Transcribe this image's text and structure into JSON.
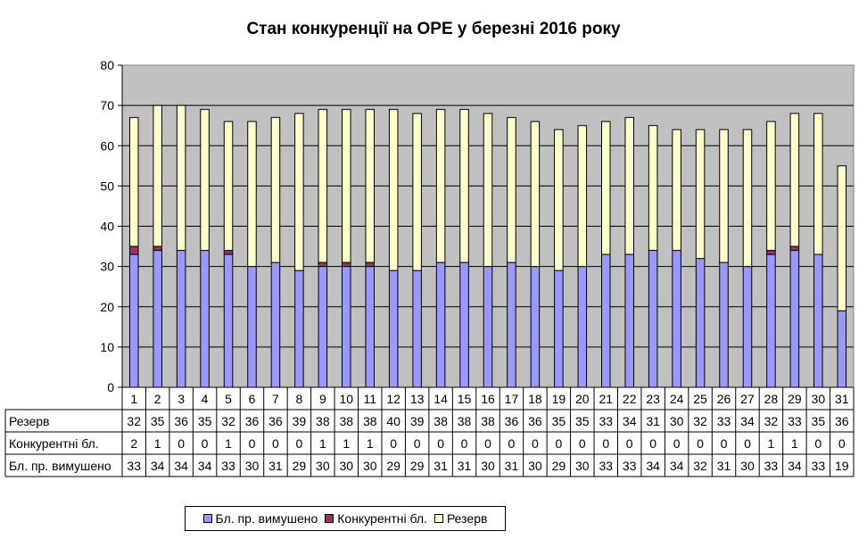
{
  "chart_data": {
    "type": "bar",
    "stacked": true,
    "title": "Стан конкуренції на ОРЕ  у березні 2016 року",
    "ylim": [
      0,
      80
    ],
    "yticks": [
      "0",
      "10",
      "20",
      "30",
      "40",
      "50",
      "60",
      "70",
      "80"
    ],
    "grid": true,
    "legend_position": "bottom",
    "plot_background": "#c0c0c0",
    "categories": [
      "1",
      "2",
      "3",
      "4",
      "5",
      "6",
      "7",
      "8",
      "9",
      "10",
      "11",
      "12",
      "13",
      "14",
      "15",
      "16",
      "17",
      "18",
      "19",
      "20",
      "21",
      "22",
      "23",
      "24",
      "25",
      "26",
      "27",
      "28",
      "29",
      "30",
      "31"
    ],
    "series": [
      {
        "name": "Бл. пр. вимушено",
        "color": "#9999ff",
        "values": [
          33,
          34,
          34,
          34,
          33,
          30,
          31,
          29,
          30,
          30,
          30,
          29,
          29,
          31,
          31,
          30,
          31,
          30,
          29,
          30,
          33,
          33,
          34,
          34,
          32,
          31,
          30,
          33,
          34,
          33,
          19
        ]
      },
      {
        "name": "Конкурентні бл.",
        "color": "#993366",
        "values": [
          2,
          1,
          0,
          0,
          1,
          0,
          0,
          0,
          1,
          1,
          1,
          0,
          0,
          0,
          0,
          0,
          0,
          0,
          0,
          0,
          0,
          0,
          0,
          0,
          0,
          0,
          0,
          1,
          1,
          0,
          0
        ]
      },
      {
        "name": "Резерв",
        "color": "#ffffcc",
        "values": [
          32,
          35,
          36,
          35,
          32,
          36,
          36,
          39,
          38,
          38,
          38,
          40,
          39,
          38,
          38,
          38,
          36,
          36,
          35,
          35,
          33,
          34,
          31,
          30,
          32,
          33,
          34,
          32,
          33,
          35,
          36
        ]
      }
    ],
    "table": {
      "rows": [
        {
          "label": "Резерв",
          "values": [
            "32",
            "35",
            "36",
            "35",
            "32",
            "36",
            "36",
            "39",
            "38",
            "38",
            "38",
            "40",
            "39",
            "38",
            "38",
            "38",
            "36",
            "36",
            "35",
            "35",
            "33",
            "34",
            "31",
            "30",
            "32",
            "33",
            "34",
            "32",
            "33",
            "35",
            "36"
          ]
        },
        {
          "label": "Конкурентні бл.",
          "values": [
            "2",
            "1",
            "0",
            "0",
            "1",
            "0",
            "0",
            "0",
            "1",
            "1",
            "1",
            "0",
            "0",
            "0",
            "0",
            "0",
            "0",
            "0",
            "0",
            "0",
            "0",
            "0",
            "0",
            "0",
            "0",
            "0",
            "0",
            "1",
            "1",
            "0",
            "0"
          ]
        },
        {
          "label": "Бл. пр. вимушено",
          "values": [
            "33",
            "34",
            "34",
            "34",
            "33",
            "30",
            "31",
            "29",
            "30",
            "30",
            "30",
            "29",
            "29",
            "31",
            "31",
            "30",
            "31",
            "30",
            "29",
            "30",
            "33",
            "33",
            "34",
            "34",
            "32",
            "31",
            "30",
            "33",
            "34",
            "33",
            "19"
          ]
        }
      ]
    },
    "legend": [
      {
        "label": "Бл. пр. вимушено",
        "color": "#9999ff"
      },
      {
        "label": "Конкурентні бл.",
        "color": "#993366"
      },
      {
        "label": "Резерв",
        "color": "#ffffcc"
      }
    ]
  }
}
